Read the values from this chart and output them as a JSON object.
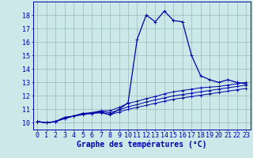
{
  "xlabel": "Graphe des températures (°C)",
  "hours": [
    0,
    1,
    2,
    3,
    4,
    5,
    6,
    7,
    8,
    9,
    10,
    11,
    12,
    13,
    14,
    15,
    16,
    17,
    18,
    19,
    20,
    21,
    22,
    23
  ],
  "temp_main": [
    10.1,
    10.0,
    10.1,
    10.4,
    10.5,
    10.7,
    10.7,
    10.8,
    10.6,
    11.0,
    11.5,
    16.2,
    18.0,
    17.5,
    18.3,
    17.6,
    17.5,
    15.0,
    13.5,
    13.2,
    13.0,
    13.2,
    13.0,
    12.9
  ],
  "temp_line1": [
    10.1,
    10.0,
    10.1,
    10.3,
    10.5,
    10.6,
    10.7,
    10.75,
    10.6,
    10.8,
    11.0,
    11.15,
    11.3,
    11.45,
    11.6,
    11.75,
    11.85,
    11.95,
    12.05,
    12.15,
    12.25,
    12.35,
    12.45,
    12.55
  ],
  "temp_line2": [
    10.1,
    10.0,
    10.1,
    10.35,
    10.5,
    10.65,
    10.75,
    10.85,
    10.75,
    10.95,
    11.2,
    11.35,
    11.55,
    11.7,
    11.85,
    12.0,
    12.1,
    12.2,
    12.3,
    12.4,
    12.5,
    12.6,
    12.7,
    12.8
  ],
  "temp_line3": [
    10.1,
    10.0,
    10.1,
    10.4,
    10.5,
    10.7,
    10.75,
    10.9,
    10.9,
    11.15,
    11.45,
    11.6,
    11.8,
    11.95,
    12.15,
    12.3,
    12.4,
    12.5,
    12.6,
    12.65,
    12.7,
    12.8,
    12.9,
    13.0
  ],
  "ylim": [
    9.5,
    19.0
  ],
  "yticks": [
    10,
    11,
    12,
    13,
    14,
    15,
    16,
    17,
    18
  ],
  "bg_color": "#cce8e8",
  "line_color": "#0000aa",
  "grid_color": "#99bbbb",
  "xlabel_fontsize": 7,
  "tick_fontsize": 6
}
